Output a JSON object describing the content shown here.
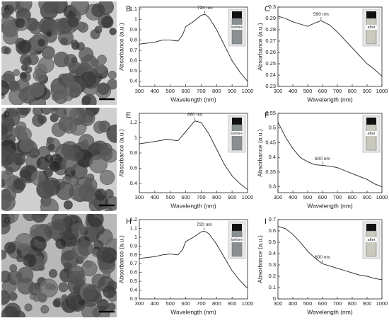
{
  "image_panels": [
    {
      "label": "A"
    },
    {
      "label": "D"
    },
    {
      "label": "G"
    }
  ],
  "chart_data": [
    {
      "type": "line",
      "panel": "B",
      "color": "#222",
      "x": [
        300,
        350,
        400,
        450,
        500,
        550,
        580,
        600,
        650,
        700,
        724,
        750,
        800,
        850,
        900,
        950,
        1000
      ],
      "values": [
        0.76,
        0.77,
        0.78,
        0.8,
        0.8,
        0.79,
        0.85,
        0.93,
        0.98,
        1.04,
        1.05,
        1.02,
        0.9,
        0.75,
        0.6,
        0.49,
        0.4
      ],
      "xlim": [
        300,
        1000
      ],
      "xticks": [
        300,
        400,
        500,
        600,
        700,
        800,
        900,
        1000
      ],
      "ylim": [
        0.35,
        1.12
      ],
      "yticks": [
        0.4,
        0.5,
        0.6,
        0.7,
        0.8,
        0.9,
        1,
        1.1
      ],
      "xlabel": "Wavelength (nm)",
      "ylabel": "Absorbance (a.u.)",
      "annotation": {
        "text": "724 nm",
        "x": 724,
        "y": 1.05
      },
      "inset_label": "before"
    },
    {
      "type": "line",
      "panel": "C",
      "color": "#222",
      "x": [
        300,
        350,
        400,
        450,
        500,
        550,
        590,
        650,
        700,
        750,
        800,
        850,
        900,
        950,
        1000
      ],
      "values": [
        0.292,
        0.29,
        0.287,
        0.285,
        0.283,
        0.286,
        0.288,
        0.284,
        0.278,
        0.271,
        0.264,
        0.257,
        0.25,
        0.245,
        0.239
      ],
      "xlim": [
        300,
        1000
      ],
      "xticks": [
        300,
        400,
        500,
        600,
        700,
        800,
        900,
        1000
      ],
      "ylim": [
        0.23,
        0.3
      ],
      "yticks": [
        0.23,
        0.24,
        0.25,
        0.26,
        0.27,
        0.28,
        0.29,
        0.3
      ],
      "xlabel": "Wavelength (nm)",
      "ylabel": "Absorbance (a.u.)",
      "annotation": {
        "text": "590 nm",
        "x": 590,
        "y": 0.288
      },
      "inset_label": "after"
    },
    {
      "type": "line",
      "panel": "E",
      "color": "#222",
      "x": [
        300,
        400,
        480,
        550,
        600,
        650,
        660,
        700,
        750,
        800,
        850,
        900,
        950,
        1000
      ],
      "values": [
        0.92,
        0.95,
        0.98,
        0.96,
        1.08,
        1.2,
        1.22,
        1.2,
        1.05,
        0.85,
        0.65,
        0.5,
        0.4,
        0.32
      ],
      "xlim": [
        300,
        1000
      ],
      "xticks": [
        300,
        400,
        500,
        600,
        700,
        800,
        900,
        1000
      ],
      "ylim": [
        0.28,
        1.32
      ],
      "yticks": [
        0.4,
        0.6,
        0.8,
        1,
        1.2
      ],
      "xlabel": "Wavelength (nm)",
      "ylabel": "Absorbance (a.u.)",
      "annotation": {
        "text": "660 nm",
        "x": 660,
        "y": 1.22
      },
      "inset_label": "before"
    },
    {
      "type": "line",
      "panel": "F",
      "color": "#222",
      "x": [
        300,
        350,
        400,
        450,
        500,
        550,
        600,
        650,
        700,
        750,
        800,
        850,
        900,
        950,
        1000
      ],
      "values": [
        0.52,
        0.47,
        0.43,
        0.4,
        0.385,
        0.375,
        0.373,
        0.37,
        0.365,
        0.355,
        0.345,
        0.335,
        0.325,
        0.31,
        0.3
      ],
      "xlim": [
        300,
        1000
      ],
      "xticks": [
        300,
        400,
        500,
        600,
        700,
        800,
        900,
        1000
      ],
      "ylim": [
        0.28,
        0.55
      ],
      "yticks": [
        0.3,
        0.35,
        0.4,
        0.45,
        0.5,
        0.55
      ],
      "xlabel": "Wavelength (nm)",
      "ylabel": "Absorbance (a.u.)",
      "annotation": {
        "text": "600 nm",
        "x": 600,
        "y": 0.373
      },
      "inset_label": "after"
    },
    {
      "type": "line",
      "panel": "H",
      "color": "#222",
      "x": [
        300,
        350,
        400,
        450,
        500,
        550,
        580,
        600,
        650,
        700,
        720,
        750,
        800,
        850,
        900,
        950,
        1000
      ],
      "values": [
        0.76,
        0.77,
        0.78,
        0.8,
        0.81,
        0.8,
        0.86,
        0.95,
        1.0,
        1.06,
        1.07,
        1.04,
        0.92,
        0.77,
        0.62,
        0.51,
        0.42
      ],
      "xlim": [
        300,
        1000
      ],
      "xticks": [
        300,
        400,
        500,
        600,
        700,
        800,
        900,
        1000
      ],
      "ylim": [
        0.3,
        1.2
      ],
      "yticks": [
        0.3,
        0.4,
        0.5,
        0.6,
        0.7,
        0.8,
        0.9,
        1,
        1.1,
        1.2
      ],
      "xlabel": "Wavelength (nm)",
      "ylabel": "Absorbance (a.u.)",
      "annotation": {
        "text": "720 nm",
        "x": 720,
        "y": 1.07
      },
      "inset_label": "before"
    },
    {
      "type": "line",
      "panel": "I",
      "color": "#222",
      "x": [
        300,
        350,
        400,
        450,
        500,
        550,
        600,
        650,
        700,
        750,
        800,
        850,
        900,
        950,
        1000
      ],
      "values": [
        0.64,
        0.62,
        0.57,
        0.5,
        0.42,
        0.36,
        0.31,
        0.29,
        0.27,
        0.25,
        0.23,
        0.21,
        0.2,
        0.18,
        0.17
      ],
      "xlim": [
        300,
        1000
      ],
      "xticks": [
        300,
        400,
        500,
        600,
        700,
        800,
        900,
        1000
      ],
      "ylim": [
        0,
        0.7
      ],
      "yticks": [
        0,
        0.1,
        0.2,
        0.3,
        0.4,
        0.5,
        0.6,
        0.7
      ],
      "xlabel": "Wavelength (nm)",
      "ylabel": "Absorbance (a.u.)",
      "annotation": {
        "text": "600 nm",
        "x": 600,
        "y": 0.31
      },
      "inset_label": "after"
    }
  ]
}
